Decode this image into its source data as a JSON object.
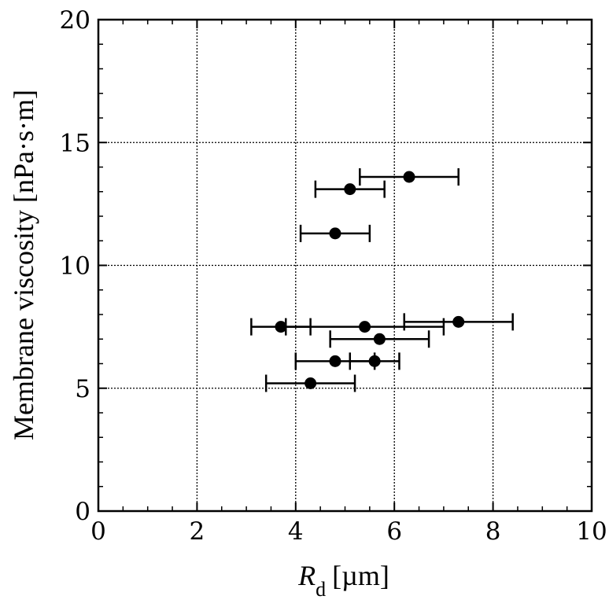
{
  "chart_data": {
    "type": "scatter",
    "title": "",
    "xlabel": {
      "symbol": "R",
      "subscript": "d",
      "unit": "[µm]"
    },
    "ylabel": "Membrane viscosity [nPa·s·m]",
    "xlim": [
      0,
      10
    ],
    "ylim": [
      0,
      20
    ],
    "xticks": [
      "0",
      "2",
      "4",
      "6",
      "8",
      "10"
    ],
    "yticks": [
      "0",
      "5",
      "10",
      "15",
      "20"
    ],
    "grid": true,
    "error_bars": "horizontal",
    "points": [
      {
        "x": 6.3,
        "y": 13.6,
        "xerr": 1.0
      },
      {
        "x": 5.1,
        "y": 13.1,
        "xerr": 0.7
      },
      {
        "x": 4.8,
        "y": 11.3,
        "xerr": 0.7
      },
      {
        "x": 7.3,
        "y": 7.7,
        "xerr": 1.1
      },
      {
        "x": 3.7,
        "y": 7.5,
        "xerr": 0.6
      },
      {
        "x": 5.4,
        "y": 7.5,
        "xerr": 1.6
      },
      {
        "x": 5.7,
        "y": 7.0,
        "xerr": 1.0
      },
      {
        "x": 4.8,
        "y": 6.1,
        "xerr": 0.8
      },
      {
        "x": 5.6,
        "y": 6.1,
        "xerr": 0.5
      },
      {
        "x": 4.3,
        "y": 5.2,
        "xerr": 0.9
      }
    ]
  }
}
